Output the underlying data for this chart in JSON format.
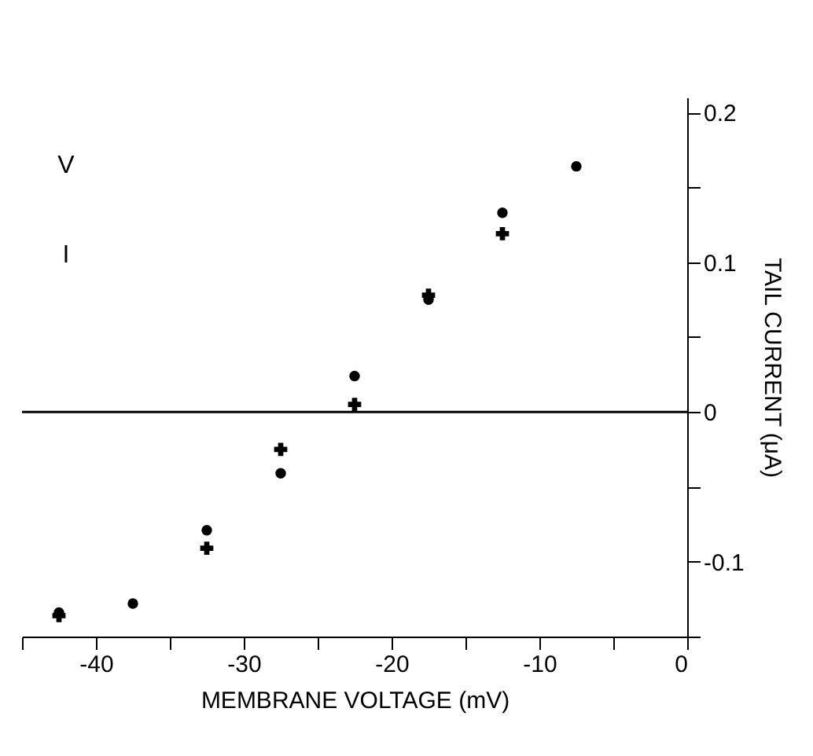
{
  "chart_data": {
    "type": "scatter",
    "xlabel": "MEMBRANE VOLTAGE (mV)",
    "ylabel": "TAIL CURRENT (μA)",
    "series": [
      {
        "color": "#000000",
        "marker": "circle",
        "x": [
          -42.5,
          -37.5,
          -32.5,
          -27.5,
          -22.5,
          -17.5,
          -12.5,
          -7.5
        ],
        "values": [
          -0.134,
          -0.128,
          -0.079,
          -0.041,
          0.024,
          0.075,
          0.133,
          0.164
        ]
      },
      {
        "color": "#000000",
        "marker": "cross",
        "x": [
          -42.5,
          -32.5,
          -27.5,
          -22.5,
          -17.5,
          -12.5
        ],
        "values": [
          -0.136,
          -0.091,
          -0.025,
          0.005,
          0.078,
          0.119
        ]
      }
    ],
    "xlim": [
      -45,
      0
    ],
    "xticks": [
      {
        "value": -45,
        "label": null
      },
      -40,
      {
        "value": -35,
        "label": null
      },
      -30,
      {
        "value": -25,
        "label": null
      },
      -20,
      {
        "value": -15,
        "label": null
      },
      -10,
      {
        "value": -5,
        "label": null
      },
      0
    ],
    "ylim": [
      -0.15,
      0.21
    ],
    "yticks": [
      {
        "value": -0.15,
        "label": null
      },
      -0.1,
      {
        "value": -0.05,
        "label": null
      },
      0,
      {
        "value": 0.05,
        "label": null
      },
      0.1,
      {
        "value": 0.15,
        "label": null
      },
      0.2
    ],
    "ref_lines": [
      {
        "axis": "y",
        "value": 0,
        "color": "#000000"
      }
    ],
    "annotations": [
      "V",
      "I"
    ],
    "grid": false
  }
}
